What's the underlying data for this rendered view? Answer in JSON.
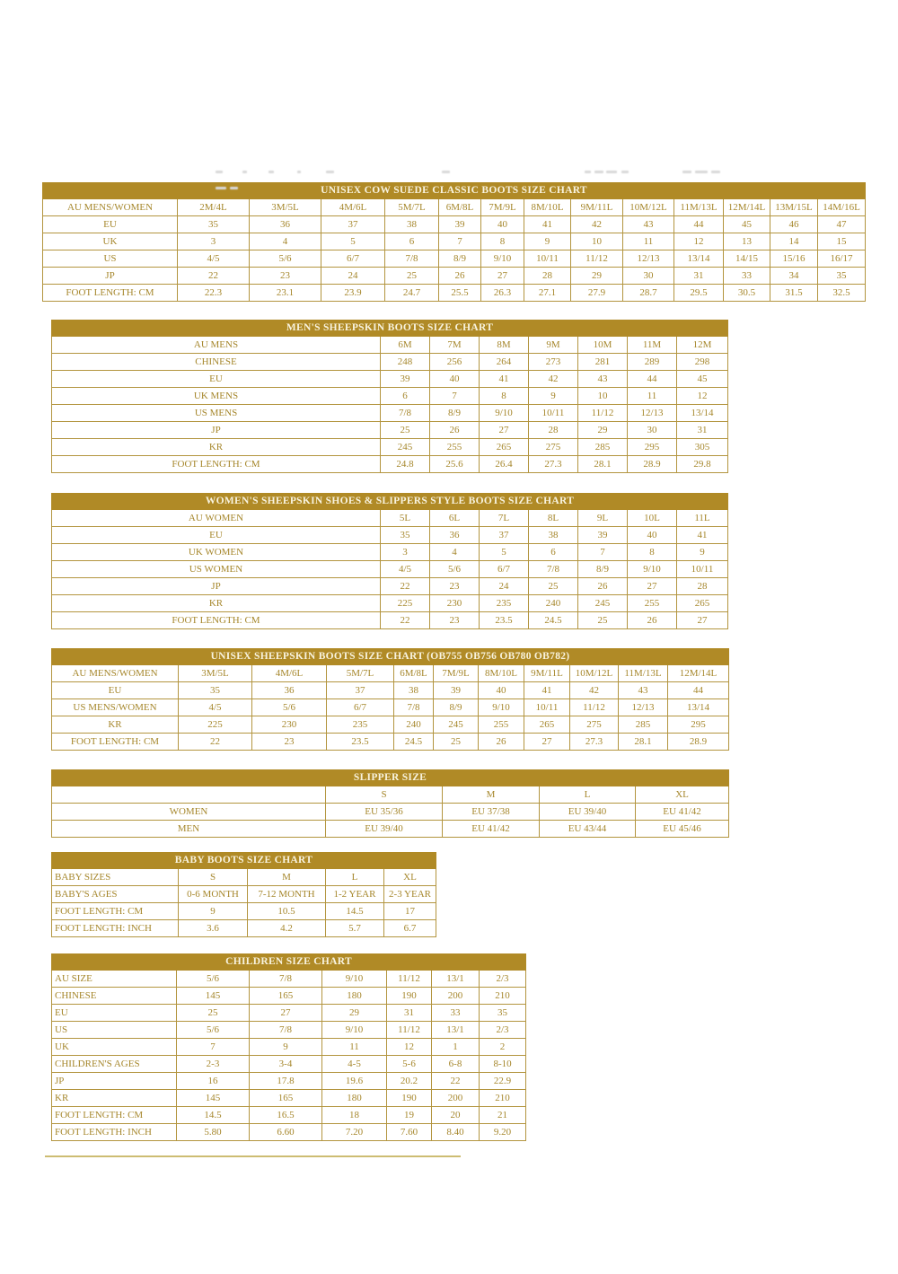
{
  "page": {
    "background": "#ffffff",
    "accent_color": "#b08a26",
    "border_color": "#b3953f",
    "title_text_color": "#f8f3df",
    "cell_text_color": "#a6872c"
  },
  "tables": [
    {
      "title": "UNISEX COW SUEDE CLASSIC BOOTS SIZE CHART",
      "rows": [
        [
          "AU MENS/WOMEN",
          "2M/4L",
          "3M/5L",
          "4M/6L",
          "5M/7L",
          "6M/8L",
          "7M/9L",
          "8M/10L",
          "9M/11L",
          "10M/12L",
          "11M/13L",
          "12M/14L",
          "13M/15L",
          "14M/16L"
        ],
        [
          "EU",
          "35",
          "36",
          "37",
          "38",
          "39",
          "40",
          "41",
          "42",
          "43",
          "44",
          "45",
          "46",
          "47"
        ],
        [
          "UK",
          "3",
          "4",
          "5",
          "6",
          "7",
          "8",
          "9",
          "10",
          "11",
          "12",
          "13",
          "14",
          "15"
        ],
        [
          "US",
          "4/5",
          "5/6",
          "6/7",
          "7/8",
          "8/9",
          "9/10",
          "10/11",
          "11/12",
          "12/13",
          "13/14",
          "14/15",
          "15/16",
          "16/17"
        ],
        [
          "JP",
          "22",
          "23",
          "24",
          "25",
          "26",
          "27",
          "28",
          "29",
          "30",
          "31",
          "33",
          "34",
          "35"
        ],
        [
          "FOOT LENGTH: CM",
          "22.3",
          "23.1",
          "23.9",
          "24.7",
          "25.5",
          "26.3",
          "27.1",
          "27.9",
          "28.7",
          "29.5",
          "30.5",
          "31.5",
          "32.5"
        ]
      ]
    },
    {
      "title": "MEN'S SHEEPSKIN BOOTS SIZE CHART",
      "rows": [
        [
          "AU MENS",
          "6M",
          "7M",
          "8M",
          "9M",
          "10M",
          "11M",
          "12M"
        ],
        [
          "CHINESE",
          "248",
          "256",
          "264",
          "273",
          "281",
          "289",
          "298"
        ],
        [
          "EU",
          "39",
          "40",
          "41",
          "42",
          "43",
          "44",
          "45"
        ],
        [
          "UK MENS",
          "6",
          "7",
          "8",
          "9",
          "10",
          "11",
          "12"
        ],
        [
          "US MENS",
          "7/8",
          "8/9",
          "9/10",
          "10/11",
          "11/12",
          "12/13",
          "13/14"
        ],
        [
          "JP",
          "25",
          "26",
          "27",
          "28",
          "29",
          "30",
          "31"
        ],
        [
          "KR",
          "245",
          "255",
          "265",
          "275",
          "285",
          "295",
          "305"
        ],
        [
          "FOOT LENGTH: CM",
          "24.8",
          "25.6",
          "26.4",
          "27.3",
          "28.1",
          "28.9",
          "29.8"
        ]
      ]
    },
    {
      "title": "WOMEN'S SHEEPSKIN SHOES & SLIPPERS STYLE BOOTS SIZE CHART",
      "rows": [
        [
          "AU WOMEN",
          "5L",
          "6L",
          "7L",
          "8L",
          "9L",
          "10L",
          "11L"
        ],
        [
          "EU",
          "35",
          "36",
          "37",
          "38",
          "39",
          "40",
          "41"
        ],
        [
          "UK WOMEN",
          "3",
          "4",
          "5",
          "6",
          "7",
          "8",
          "9"
        ],
        [
          "US WOMEN",
          "4/5",
          "5/6",
          "6/7",
          "7/8",
          "8/9",
          "9/10",
          "10/11"
        ],
        [
          "JP",
          "22",
          "23",
          "24",
          "25",
          "26",
          "27",
          "28"
        ],
        [
          "KR",
          "225",
          "230",
          "235",
          "240",
          "245",
          "255",
          "265"
        ],
        [
          "FOOT LENGTH: CM",
          "22",
          "23",
          "23.5",
          "24.5",
          "25",
          "26",
          "27"
        ]
      ]
    },
    {
      "title": "UNISEX SHEEPSKIN BOOTS SIZE CHART (OB755 OB756 OB780 OB782)",
      "rows": [
        [
          "AU MENS/WOMEN",
          "3M/5L",
          "4M/6L",
          "5M/7L",
          "6M/8L",
          "7M/9L",
          "8M/10L",
          "9M/11L",
          "10M/12L",
          "11M/13L",
          "12M/14L"
        ],
        [
          "EU",
          "35",
          "36",
          "37",
          "38",
          "39",
          "40",
          "41",
          "42",
          "43",
          "44"
        ],
        [
          "US MENS/WOMEN",
          "4/5",
          "5/6",
          "6/7",
          "7/8",
          "8/9",
          "9/10",
          "10/11",
          "11/12",
          "12/13",
          "13/14"
        ],
        [
          "KR",
          "225",
          "230",
          "235",
          "240",
          "245",
          "255",
          "265",
          "275",
          "285",
          "295"
        ],
        [
          "FOOT LENGTH: CM",
          "22",
          "23",
          "23.5",
          "24.5",
          "25",
          "26",
          "27",
          "27.3",
          "28.1",
          "28.9"
        ]
      ]
    },
    {
      "title": "SLIPPER SIZE",
      "rows": [
        [
          "",
          "S",
          "M",
          "L",
          "XL"
        ],
        [
          "WOMEN",
          "EU 35/36",
          "EU 37/38",
          "EU 39/40",
          "EU 41/42"
        ],
        [
          "MEN",
          "EU 39/40",
          "EU 41/42",
          "EU 43/44",
          "EU 45/46"
        ]
      ]
    },
    {
      "title": "BABY BOOTS SIZE CHART",
      "rows": [
        [
          "BABY SIZES",
          "S",
          "M",
          "L",
          "XL"
        ],
        [
          "BABY'S AGES",
          "0-6 MONTH",
          "7-12 MONTH",
          "1-2 YEAR",
          "2-3 YEAR"
        ],
        [
          "FOOT LENGTH: CM",
          "9",
          "10.5",
          "14.5",
          "17"
        ],
        [
          "FOOT LENGTH: INCH",
          "3.6",
          "4.2",
          "5.7",
          "6.7"
        ]
      ]
    },
    {
      "title": "CHILDREN SIZE CHART",
      "rows": [
        [
          "AU SIZE",
          "5/6",
          "7/8",
          "9/10",
          "11/12",
          "13/1",
          "2/3"
        ],
        [
          "CHINESE",
          "145",
          "165",
          "180",
          "190",
          "200",
          "210"
        ],
        [
          "EU",
          "25",
          "27",
          "29",
          "31",
          "33",
          "35"
        ],
        [
          "US",
          "5/6",
          "7/8",
          "9/10",
          "11/12",
          "13/1",
          "2/3"
        ],
        [
          "UK",
          "7",
          "9",
          "11",
          "12",
          "1",
          "2"
        ],
        [
          "CHILDREN'S AGES",
          "2-3",
          "3-4",
          "4-5",
          "5-6",
          "6-8",
          "8-10"
        ],
        [
          "JP",
          "16",
          "17.8",
          "19.6",
          "20.2",
          "22",
          "22.9"
        ],
        [
          "KR",
          "145",
          "165",
          "180",
          "190",
          "200",
          "210"
        ],
        [
          "FOOT LENGTH: CM",
          "14.5",
          "16.5",
          "18",
          "19",
          "20",
          "21"
        ],
        [
          "FOOT LENGTH: INCH",
          "5.80",
          "6.60",
          "7.20",
          "7.60",
          "8.40",
          "9.20"
        ]
      ]
    }
  ]
}
